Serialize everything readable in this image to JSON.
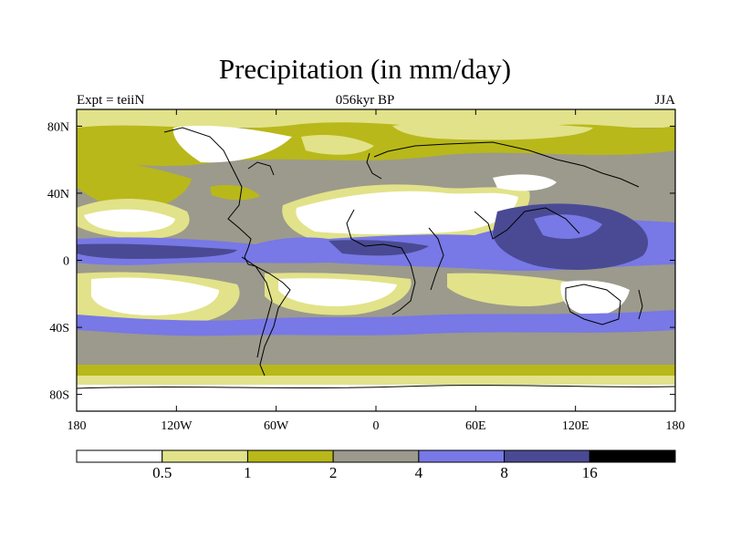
{
  "title": "Precipitation (in mm/day)",
  "subtitle_left": "Expt = teiiN",
  "subtitle_center": "056kyr BP",
  "subtitle_right": "JJA",
  "map": {
    "lon_range": [
      -180,
      180
    ],
    "lat_range": [
      -90,
      90
    ],
    "x_ticks": [
      {
        "value": -180,
        "label": "180"
      },
      {
        "value": -120,
        "label": "120W"
      },
      {
        "value": -60,
        "label": "60W"
      },
      {
        "value": 0,
        "label": "0"
      },
      {
        "value": 60,
        "label": "60E"
      },
      {
        "value": 120,
        "label": "120E"
      },
      {
        "value": 180,
        "label": "180"
      }
    ],
    "y_ticks": [
      {
        "value": 80,
        "label": "80N"
      },
      {
        "value": 40,
        "label": "40N"
      },
      {
        "value": 0,
        "label": "0"
      },
      {
        "value": -40,
        "label": "40S"
      },
      {
        "value": -80,
        "label": "80S"
      }
    ]
  },
  "colorbar": {
    "colors": [
      "#ffffff",
      "#e2e28a",
      "#b8b81a",
      "#9c9a8c",
      "#7878e6",
      "#4a4a94",
      "#000000"
    ],
    "labels": [
      "0.5",
      "1",
      "2",
      "4",
      "8",
      "16"
    ]
  }
}
